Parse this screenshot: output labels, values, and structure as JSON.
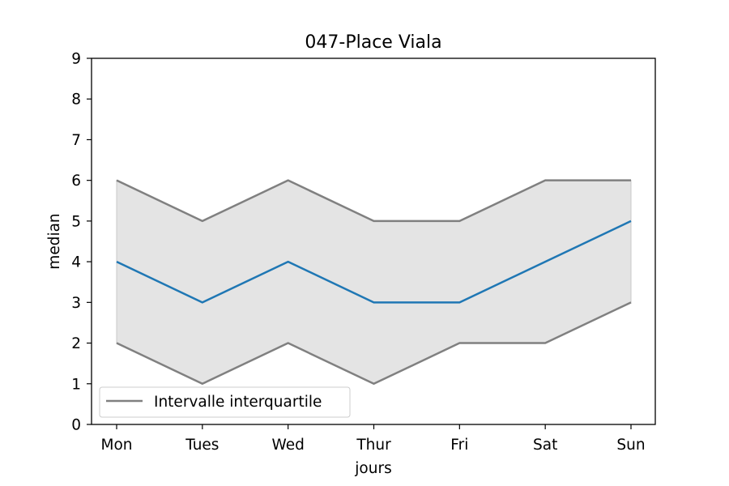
{
  "chart_data": {
    "type": "line",
    "title": "047-Place Viala",
    "xlabel": "jours",
    "ylabel": "median",
    "categories": [
      "Mon",
      "Tues",
      "Wed",
      "Thur",
      "Fri",
      "Sat",
      "Sun"
    ],
    "ylim": [
      0,
      9
    ],
    "yticks": [
      "0",
      "1",
      "2",
      "3",
      "4",
      "5",
      "6",
      "7",
      "8",
      "9"
    ],
    "grid": false,
    "legend_position": "lower-left",
    "series": [
      {
        "key": "median",
        "values": [
          4,
          3,
          4,
          3,
          3,
          4,
          5
        ],
        "color": "#1f77b4"
      },
      {
        "key": "q1",
        "values": [
          2,
          1,
          2,
          1,
          2,
          2,
          3
        ],
        "color": "#808080"
      },
      {
        "key": "q3",
        "values": [
          6,
          5,
          6,
          5,
          5,
          6,
          6
        ],
        "color": "#808080"
      }
    ],
    "band": {
      "fill": "#e4e4e4",
      "edge": "#c8c8c8"
    },
    "legend": [
      {
        "name": "Intervalle interquartile",
        "color": "#808080"
      }
    ]
  }
}
